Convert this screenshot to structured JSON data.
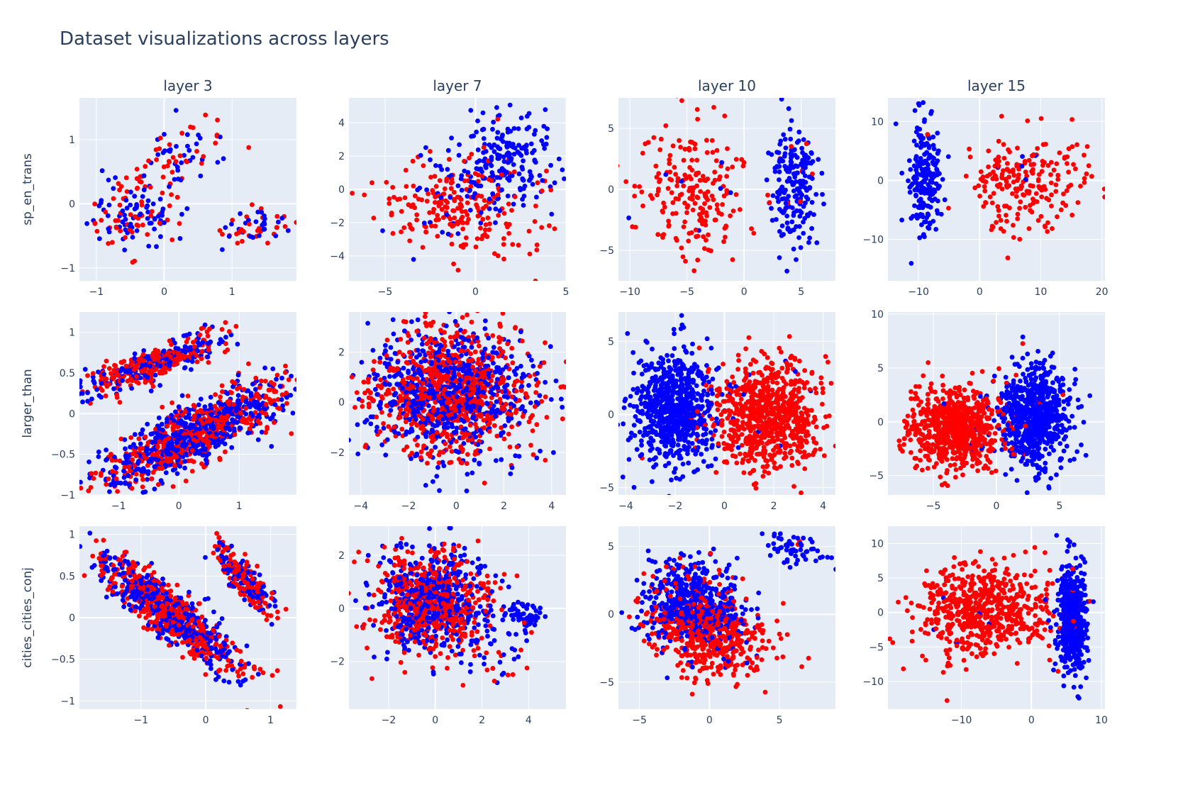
{
  "title": "Dataset visualizations across layers",
  "colors": {
    "positive": "#0000ff",
    "negative": "#ff0000",
    "plot_bg": "#e5ecf6",
    "grid": "#ffffff",
    "text": "#2a3f5f"
  },
  "column_titles": [
    "layer 3",
    "layer 7",
    "layer 10",
    "layer 15"
  ],
  "row_titles": [
    "sp_en_trans",
    "larger_than",
    "cities_cities_conj"
  ],
  "chart_data": [
    {
      "type": "scatter",
      "row": 0,
      "col": 0,
      "dataset": "sp_en_trans",
      "layer": "layer 3",
      "xlim": [
        -1.25,
        1.95
      ],
      "ylim": [
        -1.2,
        1.65
      ],
      "xticks": [
        -1,
        0,
        1
      ],
      "yticks": [
        -1,
        0,
        1
      ],
      "xtick_labels": [
        "−1",
        "0",
        "1"
      ],
      "ytick_labels": [
        "−1",
        "0",
        "1"
      ],
      "n_points": 260,
      "seed": 11,
      "clusters": [
        {
          "cx": -0.45,
          "cy": -0.15,
          "sx": 0.28,
          "sy": 0.28,
          "angle": 35,
          "n": 130,
          "p_pos": 0.5
        },
        {
          "cx": 0.2,
          "cy": 0.75,
          "sx": 0.38,
          "sy": 0.22,
          "angle": 40,
          "n": 70,
          "p_pos": 0.5
        },
        {
          "cx": 1.3,
          "cy": -0.4,
          "sx": 0.25,
          "sy": 0.12,
          "angle": 15,
          "n": 60,
          "p_pos": 0.45
        }
      ]
    },
    {
      "type": "scatter",
      "row": 0,
      "col": 1,
      "dataset": "sp_en_trans",
      "layer": "layer 7",
      "xlim": [
        -7,
        5
      ],
      "ylim": [
        -5.5,
        5.5
      ],
      "xticks": [
        -5,
        0,
        5
      ],
      "yticks": [
        -4,
        -2,
        0,
        2,
        4
      ],
      "xtick_labels": [
        "−5",
        "0",
        "5"
      ],
      "ytick_labels": [
        "−4",
        "−2",
        "0",
        "2",
        "4"
      ],
      "n_points": 460,
      "seed": 23,
      "clusters": [
        {
          "cx": 1.5,
          "cy": 1.6,
          "sx": 1.5,
          "sy": 1.4,
          "angle": -20,
          "n": 230,
          "p_pos": 0.95
        },
        {
          "cx": -1.2,
          "cy": -1.2,
          "sx": 2.0,
          "sy": 1.3,
          "angle": -20,
          "n": 230,
          "p_pos": 0.05
        }
      ]
    },
    {
      "type": "scatter",
      "row": 0,
      "col": 2,
      "dataset": "sp_en_trans",
      "layer": "layer 10",
      "xlim": [
        -11,
        8
      ],
      "ylim": [
        -7.5,
        7.5
      ],
      "xticks": [
        -10,
        -5,
        0,
        5
      ],
      "yticks": [
        -5,
        0,
        5
      ],
      "xtick_labels": [
        "−10",
        "−5",
        "0",
        "5"
      ],
      "ytick_labels": [
        "−5",
        "0",
        "5"
      ],
      "n_points": 420,
      "seed": 37,
      "clusters": [
        {
          "cx": -4.5,
          "cy": 0,
          "sx": 2.4,
          "sy": 3.0,
          "angle": 0,
          "n": 210,
          "p_pos": 0.02
        },
        {
          "cx": 4.5,
          "cy": 0.3,
          "sx": 1.1,
          "sy": 2.5,
          "angle": 0,
          "n": 210,
          "p_pos": 0.98
        }
      ]
    },
    {
      "type": "scatter",
      "row": 0,
      "col": 3,
      "dataset": "sp_en_trans",
      "layer": "layer 15",
      "xlim": [
        -15,
        20.5
      ],
      "ylim": [
        -17,
        14
      ],
      "xticks": [
        -10,
        0,
        10,
        20
      ],
      "yticks": [
        -10,
        0,
        10
      ],
      "xtick_labels": [
        "−10",
        "0",
        "10",
        "20"
      ],
      "ytick_labels": [
        "−10",
        "0",
        "10"
      ],
      "n_points": 420,
      "seed": 41,
      "clusters": [
        {
          "cx": -9,
          "cy": 0,
          "sx": 1.4,
          "sy": 5.0,
          "angle": 0,
          "n": 200,
          "p_pos": 0.98
        },
        {
          "cx": 8,
          "cy": 0,
          "sx": 5.0,
          "sy": 4.0,
          "angle": 20,
          "n": 220,
          "p_pos": 0.02
        }
      ]
    },
    {
      "type": "scatter",
      "row": 1,
      "col": 0,
      "dataset": "larger_than",
      "layer": "layer 3",
      "xlim": [
        -1.65,
        1.95
      ],
      "ylim": [
        -1.0,
        1.25
      ],
      "xticks": [
        -1,
        0,
        1
      ],
      "yticks": [
        -1,
        -0.5,
        0,
        0.5,
        1
      ],
      "xtick_labels": [
        "−1",
        "0",
        "1"
      ],
      "ytick_labels": [
        "−1",
        "−0.5",
        "0",
        "0.5",
        "1"
      ],
      "n_points": 1500,
      "seed": 53,
      "clusters": [
        {
          "cx": -0.45,
          "cy": 0.6,
          "sx": 0.6,
          "sy": 0.09,
          "angle": 15,
          "n": 450,
          "p_pos": 0.45
        },
        {
          "cx": 0.25,
          "cy": -0.25,
          "sx": 0.85,
          "sy": 0.18,
          "angle": 20,
          "n": 1050,
          "p_pos": 0.55
        }
      ]
    },
    {
      "type": "scatter",
      "row": 1,
      "col": 1,
      "dataset": "larger_than",
      "layer": "layer 7",
      "xlim": [
        -4.5,
        4.6
      ],
      "ylim": [
        -3.7,
        3.6
      ],
      "xticks": [
        -4,
        -2,
        0,
        2,
        4
      ],
      "yticks": [
        -2,
        0,
        2
      ],
      "xtick_labels": [
        "−4",
        "−2",
        "0",
        "2",
        "4"
      ],
      "ytick_labels": [
        "−2",
        "0",
        "2"
      ],
      "n_points": 1500,
      "seed": 67,
      "clusters": [
        {
          "cx": -0.2,
          "cy": 0.4,
          "sx": 1.7,
          "sy": 1.25,
          "angle": 0,
          "n": 1500,
          "p_pos": 0.5
        }
      ]
    },
    {
      "type": "scatter",
      "row": 1,
      "col": 2,
      "dataset": "larger_than",
      "layer": "layer 10",
      "xlim": [
        -4.3,
        4.5
      ],
      "ylim": [
        -5.5,
        7.0
      ],
      "xticks": [
        -4,
        -2,
        0,
        2,
        4
      ],
      "yticks": [
        -5,
        0,
        5
      ],
      "xtick_labels": [
        "−4",
        "−2",
        "0",
        "2",
        "4"
      ],
      "ytick_labels": [
        "−5",
        "0",
        "5"
      ],
      "n_points": 1500,
      "seed": 71,
      "clusters": [
        {
          "cx": -2.0,
          "cy": 0.3,
          "sx": 0.85,
          "sy": 1.9,
          "angle": 0,
          "n": 750,
          "p_pos": 0.99
        },
        {
          "cx": 1.8,
          "cy": -0.1,
          "sx": 1.1,
          "sy": 1.9,
          "angle": 0,
          "n": 750,
          "p_pos": 0.01
        }
      ]
    },
    {
      "type": "scatter",
      "row": 1,
      "col": 3,
      "dataset": "larger_than",
      "layer": "layer 15",
      "xlim": [
        -8.6,
        8.6
      ],
      "ylim": [
        -6.8,
        10.2
      ],
      "xticks": [
        -5,
        0,
        5
      ],
      "yticks": [
        -5,
        0,
        5,
        10
      ],
      "xtick_labels": [
        "−5",
        "0",
        "5"
      ],
      "ytick_labels": [
        "−5",
        "0",
        "5",
        "10"
      ],
      "n_points": 1500,
      "seed": 83,
      "clusters": [
        {
          "cx": -3.2,
          "cy": -0.5,
          "sx": 1.9,
          "sy": 1.9,
          "angle": 0,
          "n": 750,
          "p_pos": 0.01
        },
        {
          "cx": 3.0,
          "cy": 0.5,
          "sx": 1.4,
          "sy": 2.3,
          "angle": 0,
          "n": 750,
          "p_pos": 0.99
        }
      ]
    },
    {
      "type": "scatter",
      "row": 2,
      "col": 0,
      "dataset": "cities_cities_conj",
      "layer": "layer 3",
      "xlim": [
        -1.95,
        1.4
      ],
      "ylim": [
        -1.1,
        1.1
      ],
      "xticks": [
        -1,
        0,
        1
      ],
      "yticks": [
        -1,
        -0.5,
        0,
        0.5,
        1
      ],
      "xtick_labels": [
        "−1",
        "0",
        "1"
      ],
      "ytick_labels": [
        "−1",
        "−0.5",
        "0",
        "0.5",
        "1"
      ],
      "n_points": 1100,
      "seed": 97,
      "clusters": [
        {
          "cx": -0.55,
          "cy": 0.05,
          "sx": 0.6,
          "sy": 0.14,
          "angle": -32,
          "n": 850,
          "p_pos": 0.5
        },
        {
          "cx": 0.6,
          "cy": 0.45,
          "sx": 0.3,
          "sy": 0.09,
          "angle": -42,
          "n": 250,
          "p_pos": 0.45
        }
      ]
    },
    {
      "type": "scatter",
      "row": 2,
      "col": 1,
      "dataset": "cities_cities_conj",
      "layer": "layer 7",
      "xlim": [
        -3.7,
        5.6
      ],
      "ylim": [
        -3.8,
        3.1
      ],
      "xticks": [
        -2,
        0,
        2,
        4
      ],
      "yticks": [
        -2,
        0,
        2
      ],
      "xtick_labels": [
        "−2",
        "0",
        "2",
        "4"
      ],
      "ytick_labels": [
        "−2",
        "0",
        "2"
      ],
      "n_points": 1100,
      "seed": 103,
      "clusters": [
        {
          "cx": -0.2,
          "cy": 0.3,
          "sx": 1.2,
          "sy": 0.95,
          "angle": 0,
          "n": 1000,
          "p_pos": 0.5
        },
        {
          "cx": 3.8,
          "cy": -0.3,
          "sx": 0.4,
          "sy": 0.25,
          "angle": 0,
          "n": 60,
          "p_pos": 0.95
        },
        {
          "cx": 2.5,
          "cy": -1.8,
          "sx": 0.8,
          "sy": 0.6,
          "angle": 0,
          "n": 40,
          "p_pos": 0.6
        }
      ]
    },
    {
      "type": "scatter",
      "row": 2,
      "col": 2,
      "dataset": "cities_cities_conj",
      "layer": "layer 10",
      "xlim": [
        -6.5,
        9.0
      ],
      "ylim": [
        -7.0,
        6.5
      ],
      "xticks": [
        -5,
        0,
        5
      ],
      "yticks": [
        -5,
        0,
        5
      ],
      "xtick_labels": [
        "−5",
        "0",
        "5"
      ],
      "ytick_labels": [
        "−5",
        "0",
        "5"
      ],
      "n_points": 1100,
      "seed": 109,
      "clusters": [
        {
          "cx": -1.3,
          "cy": 1.0,
          "sx": 1.9,
          "sy": 1.5,
          "angle": -15,
          "n": 520,
          "p_pos": 0.85
        },
        {
          "cx": 0.0,
          "cy": -1.6,
          "sx": 2.1,
          "sy": 1.4,
          "angle": -10,
          "n": 520,
          "p_pos": 0.1
        },
        {
          "cx": 6.0,
          "cy": 4.8,
          "sx": 1.1,
          "sy": 0.5,
          "angle": -20,
          "n": 60,
          "p_pos": 0.95
        }
      ]
    },
    {
      "type": "scatter",
      "row": 2,
      "col": 3,
      "dataset": "cities_cities_conj",
      "layer": "layer 15",
      "xlim": [
        -20.5,
        10.5
      ],
      "ylim": [
        -14,
        12.5
      ],
      "xticks": [
        -10,
        0,
        10
      ],
      "yticks": [
        -10,
        -5,
        0,
        5,
        10
      ],
      "xtick_labels": [
        "−10",
        "0",
        "10"
      ],
      "ytick_labels": [
        "−10",
        "−5",
        "0",
        "5",
        "10"
      ],
      "n_points": 1100,
      "seed": 113,
      "clusters": [
        {
          "cx": -7.5,
          "cy": 0.5,
          "sx": 4.8,
          "sy": 3.3,
          "angle": 0,
          "n": 600,
          "p_pos": 0.01
        },
        {
          "cx": 5.8,
          "cy": -0.8,
          "sx": 1.0,
          "sy": 4.2,
          "angle": 0,
          "n": 500,
          "p_pos": 0.99
        }
      ]
    }
  ]
}
